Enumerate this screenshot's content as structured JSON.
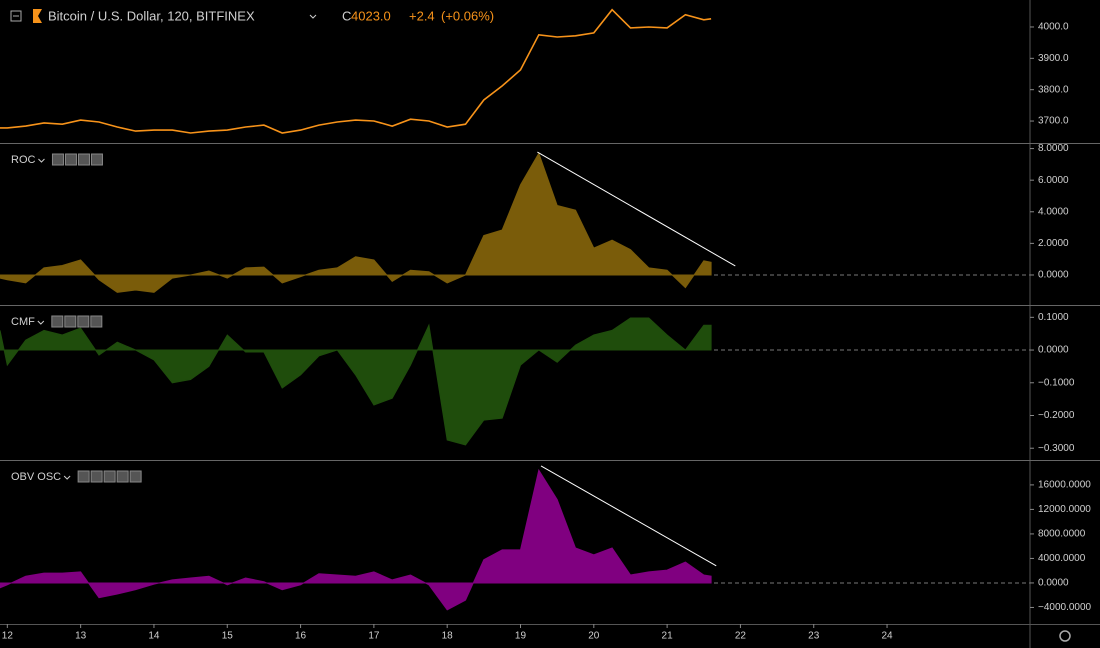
{
  "chart_data": [
    {
      "type": "line",
      "title": "Bitcoin / U.S. Dollar, 120, BITFINEX",
      "close_prefix": "C",
      "close": {
        "value": 4023,
        "label": "4023.0"
      },
      "change": {
        "value": 2.4,
        "label": "+2.4"
      },
      "change_pct": {
        "value": 0.06,
        "label": "(+0.06%)"
      },
      "color": "#f7931a",
      "x": [
        11.9,
        12,
        12.25,
        12.5,
        12.75,
        13,
        13.25,
        13.5,
        13.75,
        14,
        14.25,
        14.5,
        14.75,
        15,
        15.25,
        15.5,
        15.75,
        16,
        16.25,
        16.5,
        16.75,
        17,
        17.25,
        17.5,
        17.75,
        18,
        18.25,
        18.5,
        18.75,
        19,
        19.25,
        19.5,
        19.75,
        20,
        20.25,
        20.5,
        20.75,
        21,
        21.25,
        21.5,
        21.6
      ],
      "values": [
        3678,
        3678,
        3684,
        3694,
        3690,
        3703,
        3697,
        3681,
        3668,
        3671,
        3671,
        3662,
        3668,
        3671,
        3681,
        3687,
        3662,
        3671,
        3687,
        3697,
        3703,
        3700,
        3684,
        3706,
        3700,
        3681,
        3690,
        3767,
        3812,
        3863,
        3975,
        3968,
        3972,
        3981,
        4055,
        3997,
        4000,
        3997,
        4039,
        4023,
        4026
      ],
      "xlim": [
        11.9,
        25.95
      ],
      "ylim": [
        3630,
        4086
      ],
      "yticks": [
        {
          "value": 3700,
          "label": "3700.0"
        },
        {
          "value": 3800,
          "label": "3800.0"
        },
        {
          "value": 3900,
          "label": "3900.0"
        },
        {
          "value": 4000,
          "label": "4000.0"
        }
      ]
    },
    {
      "type": "area",
      "title": "ROC",
      "color": "#7a5c0a",
      "x": [
        11.9,
        12,
        12.25,
        12.5,
        12.75,
        13,
        13.25,
        13.5,
        13.75,
        14,
        14.25,
        14.5,
        14.75,
        15,
        15.25,
        15.5,
        15.75,
        16,
        16.25,
        16.5,
        16.75,
        17,
        17.25,
        17.5,
        17.75,
        18,
        18.25,
        18.5,
        18.75,
        19,
        19.25,
        19.5,
        19.75,
        20,
        20.25,
        20.5,
        20.75,
        21,
        21.25,
        21.5,
        21.6
      ],
      "values": [
        -0.2,
        -0.3,
        -0.5,
        0.45,
        0.6,
        0.95,
        -0.3,
        -1.1,
        -0.95,
        -1.1,
        -0.2,
        0,
        0.25,
        -0.2,
        0.45,
        0.5,
        -0.5,
        -0.1,
        0.3,
        0.45,
        1.15,
        0.95,
        -0.4,
        0.3,
        0.2,
        -0.5,
        0,
        2.5,
        2.85,
        5.7,
        7.7,
        4.4,
        4.1,
        1.7,
        2.2,
        1.6,
        0.45,
        0.3,
        -0.8,
        0.9,
        0.8
      ],
      "trendline": {
        "x": [
          19.23,
          21.93
        ],
        "y": [
          7.78,
          0.57
        ]
      },
      "xlim": [
        11.9,
        25.95
      ],
      "ylim": [
        -1.9,
        8.29
      ],
      "yticks": [
        {
          "value": 0,
          "label": "0.0000"
        },
        {
          "value": 2,
          "label": "2.0000"
        },
        {
          "value": 4,
          "label": "4.0000"
        },
        {
          "value": 6,
          "label": "6.0000"
        },
        {
          "value": 8,
          "label": "8.0000"
        }
      ]
    },
    {
      "type": "area",
      "title": "CMF",
      "color": "#1f4d0c",
      "x": [
        11.9,
        12,
        12.25,
        12.5,
        12.75,
        13,
        13.25,
        13.5,
        13.75,
        14,
        14.25,
        14.5,
        14.75,
        15,
        15.25,
        15.5,
        15.75,
        16,
        16.25,
        16.5,
        16.75,
        17,
        17.25,
        17.5,
        17.75,
        18,
        18.25,
        18.5,
        18.75,
        19,
        19.25,
        19.5,
        19.75,
        20,
        20.25,
        20.5,
        20.75,
        21,
        21.25,
        21.5,
        21.6
      ],
      "values": [
        0.06,
        -0.046,
        0.03,
        0.06,
        0.046,
        0.067,
        -0.015,
        0.024,
        0,
        -0.03,
        -0.1,
        -0.09,
        -0.05,
        0.046,
        -0.006,
        -0.006,
        -0.116,
        -0.076,
        -0.018,
        0,
        -0.076,
        -0.168,
        -0.147,
        -0.046,
        0.076,
        -0.275,
        -0.29,
        -0.214,
        -0.208,
        -0.046,
        0,
        -0.037,
        0.015,
        0.046,
        0.06,
        0.098,
        0.098,
        0.046,
        0,
        0.076,
        0.076
      ],
      "xlim": [
        11.9,
        25.95
      ],
      "ylim": [
        -0.336,
        0.1346
      ],
      "yticks": [
        {
          "value": -0.3,
          "label": "−0.3000"
        },
        {
          "value": -0.2,
          "label": "−0.2000"
        },
        {
          "value": -0.1,
          "label": "−0.1000"
        },
        {
          "value": 0,
          "label": "0.0000"
        },
        {
          "value": 0.1,
          "label": "0.1000"
        }
      ]
    },
    {
      "type": "area",
      "title": "OBV OSC",
      "color": "#800080",
      "x": [
        11.9,
        12,
        12.25,
        12.5,
        12.75,
        13,
        13.25,
        13.5,
        13.75,
        14,
        14.25,
        14.5,
        14.75,
        15,
        15.25,
        15.5,
        15.75,
        16,
        16.25,
        16.5,
        16.75,
        17,
        17.25,
        17.5,
        17.75,
        18,
        18.25,
        18.5,
        18.75,
        19,
        19.25,
        19.5,
        19.75,
        20,
        20.25,
        20.5,
        20.75,
        21,
        21.25,
        21.5,
        21.6
      ],
      "values": [
        -800,
        -300,
        1100,
        1600,
        1600,
        1800,
        -2400,
        -1800,
        -1100,
        -200,
        500,
        800,
        1100,
        -300,
        800,
        200,
        -1100,
        -300,
        1500,
        1300,
        1100,
        1800,
        500,
        1300,
        -300,
        -4400,
        -2800,
        3800,
        5400,
        5400,
        18400,
        13600,
        5700,
        4600,
        5700,
        1300,
        1800,
        2100,
        3400,
        1300,
        1100
      ],
      "trendline": {
        "x": [
          19.28,
          21.67
        ],
        "y": [
          19100,
          2800
        ]
      },
      "xlim": [
        11.9,
        25.95
      ],
      "ylim": [
        -6700,
        19900
      ],
      "xticks": [
        12,
        13,
        14,
        15,
        16,
        17,
        18,
        19,
        20,
        21,
        22,
        23,
        24
      ],
      "yticks": [
        {
          "value": -4000,
          "label": "−4000.0000"
        },
        {
          "value": 0,
          "label": "0.0000"
        },
        {
          "value": 4000,
          "label": "4000.0000"
        },
        {
          "value": 8000,
          "label": "8000.0000"
        },
        {
          "value": 12000,
          "label": "12000.0000"
        },
        {
          "value": 16000,
          "label": "16000.0000"
        }
      ]
    }
  ]
}
